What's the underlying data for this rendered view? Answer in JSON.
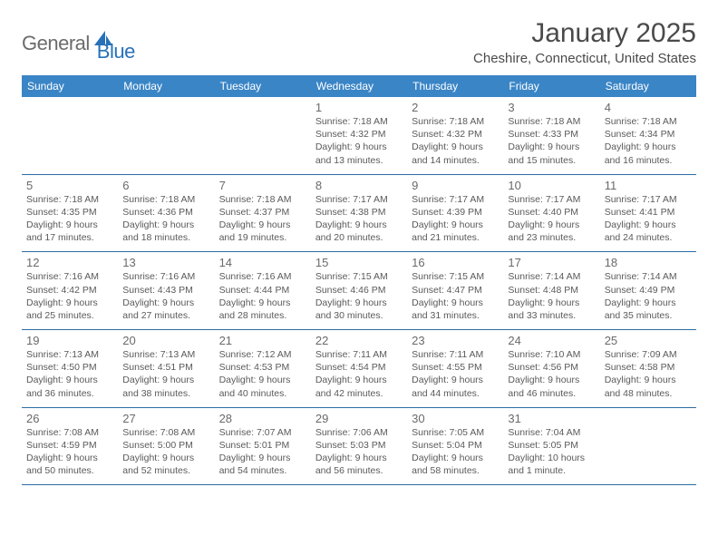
{
  "logo": {
    "text_general": "General",
    "text_blue": "Blue",
    "icon_fill": "#2871b8"
  },
  "title": "January 2025",
  "location": "Cheshire, Connecticut, United States",
  "header_bg": "#3a85c6",
  "header_text_color": "#ffffff",
  "row_border_color": "#2e6da4",
  "day_num_color": "#6a6a6a",
  "day_info_color": "#5a5a5a",
  "weekdays": [
    "Sunday",
    "Monday",
    "Tuesday",
    "Wednesday",
    "Thursday",
    "Friday",
    "Saturday"
  ],
  "weeks": [
    [
      {
        "num": "",
        "info": ""
      },
      {
        "num": "",
        "info": ""
      },
      {
        "num": "",
        "info": ""
      },
      {
        "num": "1",
        "info": "Sunrise: 7:18 AM\nSunset: 4:32 PM\nDaylight: 9 hours and 13 minutes."
      },
      {
        "num": "2",
        "info": "Sunrise: 7:18 AM\nSunset: 4:32 PM\nDaylight: 9 hours and 14 minutes."
      },
      {
        "num": "3",
        "info": "Sunrise: 7:18 AM\nSunset: 4:33 PM\nDaylight: 9 hours and 15 minutes."
      },
      {
        "num": "4",
        "info": "Sunrise: 7:18 AM\nSunset: 4:34 PM\nDaylight: 9 hours and 16 minutes."
      }
    ],
    [
      {
        "num": "5",
        "info": "Sunrise: 7:18 AM\nSunset: 4:35 PM\nDaylight: 9 hours and 17 minutes."
      },
      {
        "num": "6",
        "info": "Sunrise: 7:18 AM\nSunset: 4:36 PM\nDaylight: 9 hours and 18 minutes."
      },
      {
        "num": "7",
        "info": "Sunrise: 7:18 AM\nSunset: 4:37 PM\nDaylight: 9 hours and 19 minutes."
      },
      {
        "num": "8",
        "info": "Sunrise: 7:17 AM\nSunset: 4:38 PM\nDaylight: 9 hours and 20 minutes."
      },
      {
        "num": "9",
        "info": "Sunrise: 7:17 AM\nSunset: 4:39 PM\nDaylight: 9 hours and 21 minutes."
      },
      {
        "num": "10",
        "info": "Sunrise: 7:17 AM\nSunset: 4:40 PM\nDaylight: 9 hours and 23 minutes."
      },
      {
        "num": "11",
        "info": "Sunrise: 7:17 AM\nSunset: 4:41 PM\nDaylight: 9 hours and 24 minutes."
      }
    ],
    [
      {
        "num": "12",
        "info": "Sunrise: 7:16 AM\nSunset: 4:42 PM\nDaylight: 9 hours and 25 minutes."
      },
      {
        "num": "13",
        "info": "Sunrise: 7:16 AM\nSunset: 4:43 PM\nDaylight: 9 hours and 27 minutes."
      },
      {
        "num": "14",
        "info": "Sunrise: 7:16 AM\nSunset: 4:44 PM\nDaylight: 9 hours and 28 minutes."
      },
      {
        "num": "15",
        "info": "Sunrise: 7:15 AM\nSunset: 4:46 PM\nDaylight: 9 hours and 30 minutes."
      },
      {
        "num": "16",
        "info": "Sunrise: 7:15 AM\nSunset: 4:47 PM\nDaylight: 9 hours and 31 minutes."
      },
      {
        "num": "17",
        "info": "Sunrise: 7:14 AM\nSunset: 4:48 PM\nDaylight: 9 hours and 33 minutes."
      },
      {
        "num": "18",
        "info": "Sunrise: 7:14 AM\nSunset: 4:49 PM\nDaylight: 9 hours and 35 minutes."
      }
    ],
    [
      {
        "num": "19",
        "info": "Sunrise: 7:13 AM\nSunset: 4:50 PM\nDaylight: 9 hours and 36 minutes."
      },
      {
        "num": "20",
        "info": "Sunrise: 7:13 AM\nSunset: 4:51 PM\nDaylight: 9 hours and 38 minutes."
      },
      {
        "num": "21",
        "info": "Sunrise: 7:12 AM\nSunset: 4:53 PM\nDaylight: 9 hours and 40 minutes."
      },
      {
        "num": "22",
        "info": "Sunrise: 7:11 AM\nSunset: 4:54 PM\nDaylight: 9 hours and 42 minutes."
      },
      {
        "num": "23",
        "info": "Sunrise: 7:11 AM\nSunset: 4:55 PM\nDaylight: 9 hours and 44 minutes."
      },
      {
        "num": "24",
        "info": "Sunrise: 7:10 AM\nSunset: 4:56 PM\nDaylight: 9 hours and 46 minutes."
      },
      {
        "num": "25",
        "info": "Sunrise: 7:09 AM\nSunset: 4:58 PM\nDaylight: 9 hours and 48 minutes."
      }
    ],
    [
      {
        "num": "26",
        "info": "Sunrise: 7:08 AM\nSunset: 4:59 PM\nDaylight: 9 hours and 50 minutes."
      },
      {
        "num": "27",
        "info": "Sunrise: 7:08 AM\nSunset: 5:00 PM\nDaylight: 9 hours and 52 minutes."
      },
      {
        "num": "28",
        "info": "Sunrise: 7:07 AM\nSunset: 5:01 PM\nDaylight: 9 hours and 54 minutes."
      },
      {
        "num": "29",
        "info": "Sunrise: 7:06 AM\nSunset: 5:03 PM\nDaylight: 9 hours and 56 minutes."
      },
      {
        "num": "30",
        "info": "Sunrise: 7:05 AM\nSunset: 5:04 PM\nDaylight: 9 hours and 58 minutes."
      },
      {
        "num": "31",
        "info": "Sunrise: 7:04 AM\nSunset: 5:05 PM\nDaylight: 10 hours and 1 minute."
      },
      {
        "num": "",
        "info": ""
      }
    ]
  ]
}
